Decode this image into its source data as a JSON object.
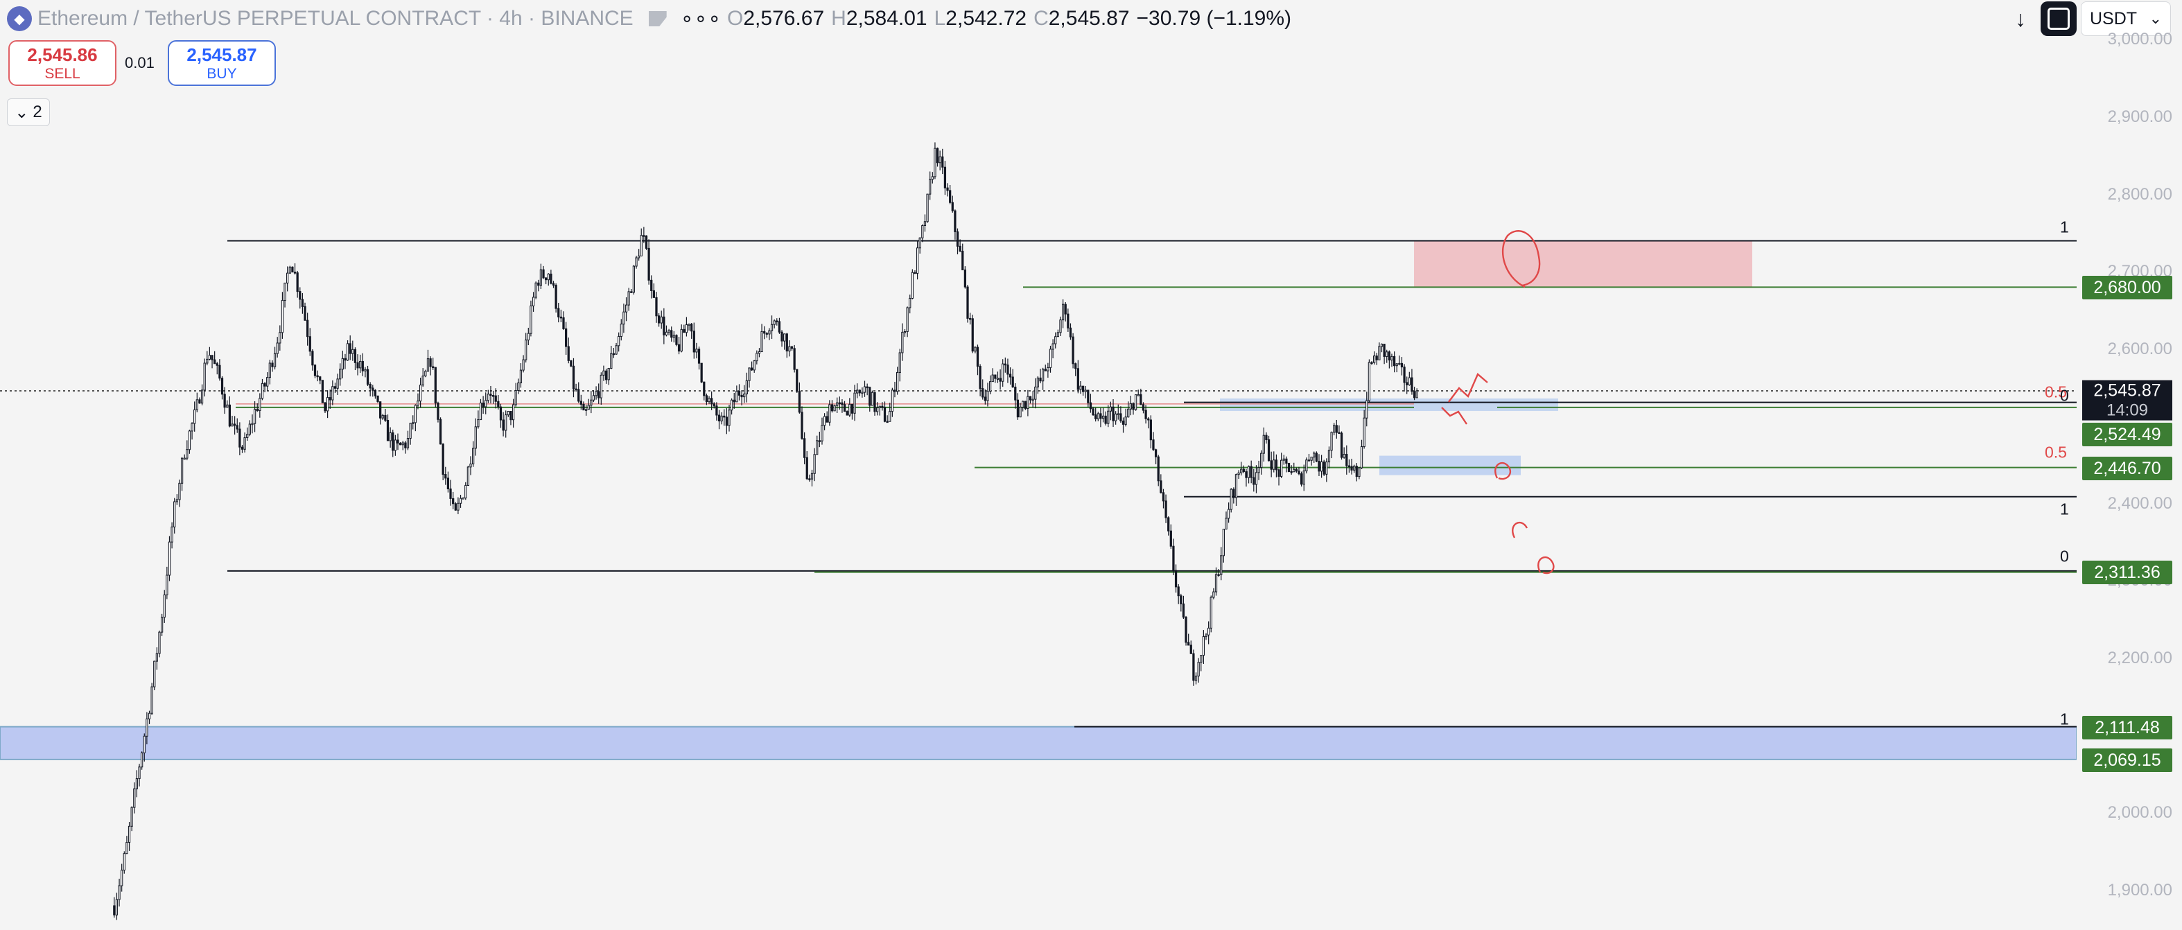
{
  "header": {
    "symbol": "Ethereum / TetherUS PERPETUAL CONTRACT · 4h · BINANCE",
    "dots": "∘∘∘",
    "ohlc": {
      "o_label": "O",
      "o": "2,576.67",
      "h_label": "H",
      "h": "2,584.01",
      "l_label": "L",
      "l": "2,542.72",
      "c_label": "C",
      "c": "2,545.87",
      "change": "−30.79 (−1.19%)"
    }
  },
  "trade": {
    "sell_price": "2,545.86",
    "sell_label": "SELL",
    "spread": "0.01",
    "buy_price": "2,545.87",
    "buy_label": "BUY"
  },
  "indicators_toggle": {
    "count": "2"
  },
  "toolbar": {
    "currency": "USDT"
  },
  "price_axis": {
    "ticks": [
      "3,000.00",
      "2,900.00",
      "2,800.00",
      "2,700.00",
      "2,600.00",
      "2,400.00",
      "2,300.00",
      "2,200.00",
      "2,000.00",
      "1,900.00"
    ],
    "labels": [
      "2,680.00",
      "2,524.49",
      "2,446.70",
      "2,311.36",
      "2,111.48",
      "2,069.15"
    ],
    "current_price": "2,545.87",
    "countdown": "14:09"
  },
  "fib_labels": {
    "top_range_1": "1",
    "fib_b_0_5": "0.5",
    "fib_b_0": "0",
    "fib_a_0_5": "0.5",
    "fib_a_1": "1",
    "low_range_0": "0",
    "bottom_1": "1"
  },
  "colors": {
    "background": "#f4f4f4",
    "candle": "#131722",
    "green_line": "#3c7d33",
    "red_zone": "#efc2c6",
    "blue_zone": "#bcc8f2",
    "annotation": "#e04848",
    "sell": "#d83a41",
    "buy": "#2962ff"
  },
  "chart_data": {
    "type": "candlestick",
    "instrument": "ETHUSDT.P",
    "timeframe": "4h",
    "ylim": [
      1850,
      3010
    ],
    "close_path": [
      1880,
      1950,
      2050,
      2140,
      2250,
      2380,
      2470,
      2520,
      2600,
      2560,
      2500,
      2470,
      2520,
      2560,
      2620,
      2720,
      2660,
      2580,
      2520,
      2560,
      2600,
      2580,
      2540,
      2500,
      2470,
      2480,
      2540,
      2590,
      2450,
      2380,
      2430,
      2520,
      2550,
      2500,
      2520,
      2600,
      2690,
      2700,
      2640,
      2560,
      2510,
      2540,
      2570,
      2620,
      2680,
      2750,
      2660,
      2620,
      2600,
      2640,
      2560,
      2520,
      2500,
      2540,
      2560,
      2610,
      2640,
      2620,
      2580,
      2420,
      2480,
      2530,
      2520,
      2530,
      2550,
      2520,
      2510,
      2600,
      2690,
      2760,
      2860,
      2800,
      2730,
      2620,
      2540,
      2560,
      2580,
      2520,
      2540,
      2560,
      2600,
      2660,
      2560,
      2530,
      2500,
      2520,
      2500,
      2540,
      2510,
      2430,
      2340,
      2250,
      2180,
      2230,
      2310,
      2400,
      2450,
      2430,
      2480,
      2440,
      2450,
      2430,
      2470,
      2440,
      2510,
      2440,
      2440,
      2580,
      2600,
      2580,
      2560,
      2546
    ],
    "annotated_levels": [
      2680.0,
      2524.49,
      2446.7,
      2311.36,
      2111.48,
      2069.15
    ],
    "demand_zone": [
      2069.15,
      2111.48
    ],
    "supply_zone": [
      2680,
      2740
    ]
  }
}
